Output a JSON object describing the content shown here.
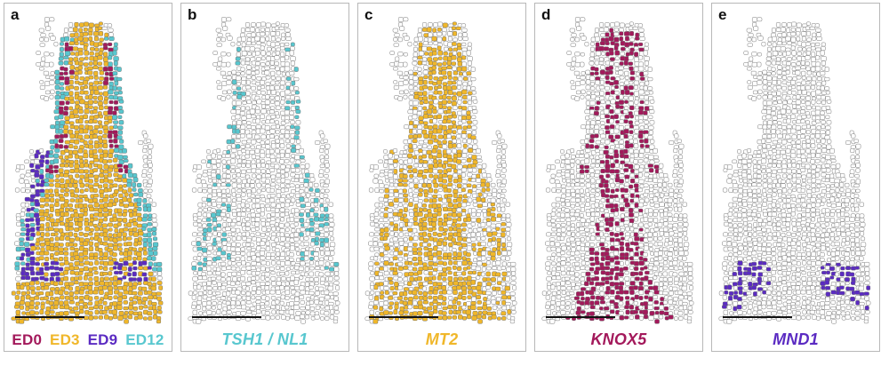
{
  "panels": [
    {
      "label": "a",
      "legend": [
        {
          "text": "ED0",
          "color": "#a3195b"
        },
        {
          "text": "ED3",
          "color": "#f0b72a"
        },
        {
          "text": "ED9",
          "color": "#5b2bc2"
        },
        {
          "text": "ED12",
          "color": "#58c7cf"
        }
      ]
    },
    {
      "label": "b",
      "caption": "TSH1 / NL1",
      "color": "#58c7cf"
    },
    {
      "label": "c",
      "caption": "MT2",
      "color": "#f0b72a"
    },
    {
      "label": "d",
      "caption": "KNOX5",
      "color": "#a3195b"
    },
    {
      "label": "e",
      "caption": "MND1",
      "color": "#5b2bc2"
    }
  ]
}
